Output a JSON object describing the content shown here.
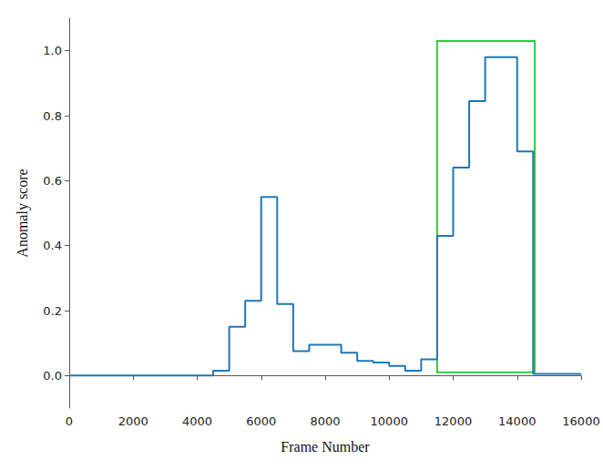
{
  "chart_data": {
    "type": "line",
    "line_style": "step",
    "x_label": "Frame Number",
    "y_label": "Anomaly score",
    "x": [
      0,
      4500,
      5000,
      5500,
      6000,
      6500,
      7000,
      7500,
      8500,
      9000,
      9500,
      10000,
      10500,
      11000,
      11500,
      12000,
      12500,
      13000,
      14000,
      14500,
      16000
    ],
    "values": [
      0.0,
      0.015,
      0.15,
      0.23,
      0.55,
      0.22,
      0.075,
      0.095,
      0.07,
      0.045,
      0.04,
      0.03,
      0.015,
      0.05,
      0.43,
      0.64,
      0.845,
      0.98,
      0.69,
      0.005,
      0.005
    ],
    "color": "#1f77b4",
    "xlim": [
      0,
      16000
    ],
    "xticks": [
      0,
      2000,
      4000,
      6000,
      8000,
      10000,
      12000,
      14000,
      16000
    ],
    "ylim": [
      -0.1,
      1.1
    ],
    "yticks": [
      {
        "value": 0,
        "label": "0.0"
      },
      {
        "value": 0.2,
        "label": "0.2"
      },
      {
        "value": 0.4,
        "label": "0.4"
      },
      {
        "value": 0.6,
        "label": "0.6"
      },
      {
        "value": 0.8,
        "label": "0.8"
      },
      {
        "value": 1,
        "label": "1.0"
      }
    ],
    "grid": false,
    "highlight_box": {
      "x": [
        11500,
        14550
      ],
      "y": [
        0.01,
        1.03
      ],
      "color": "#2ecc40"
    }
  }
}
